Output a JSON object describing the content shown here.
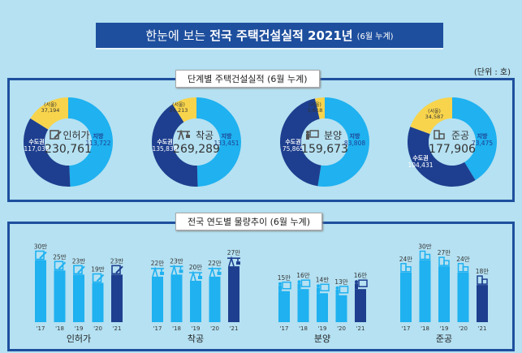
{
  "header": {
    "prefix": "한눈에 보는",
    "title": "전국 주택건설실적 2021년",
    "suffix": "(6월 누계)"
  },
  "unit": "(단위 : 호)",
  "stage_section": {
    "title": "단계별 주택건설실적 (6월 누계)"
  },
  "trend_section": {
    "title": "전국 연도별 물량추이 (6월 누계)"
  },
  "colors": {
    "local": "#1fb1f0",
    "capital": "#1e3f8f",
    "seoul": "#f8d44c",
    "bar": "#1fb1f0",
    "bar_current": "#1e3f8f",
    "banner": "#1e4f9e"
  },
  "chart_data": [
    {
      "type": "pie",
      "donut": true,
      "title": "인허가",
      "total": "230,761",
      "icon": "permit-document-icon",
      "slices": [
        {
          "name": "지방",
          "value": 113722,
          "label": "113,722"
        },
        {
          "name": "수도권",
          "value": 117039,
          "label": "117,039"
        },
        {
          "name": "(서울)",
          "value": 37194,
          "label": "37,194"
        }
      ]
    },
    {
      "type": "pie",
      "donut": true,
      "title": "착공",
      "total": "269,289",
      "icon": "crane-icon",
      "slices": [
        {
          "name": "지방",
          "value": 133451,
          "label": "133,451"
        },
        {
          "name": "수도권",
          "value": 135838,
          "label": "135,838"
        },
        {
          "name": "(서울)",
          "value": 24213,
          "label": "24,213"
        }
      ]
    },
    {
      "type": "pie",
      "donut": true,
      "title": "분양",
      "total": "159,673",
      "icon": "presentation-board-icon",
      "slices": [
        {
          "name": "지방",
          "value": 83808,
          "label": "83,808"
        },
        {
          "name": "수도권",
          "value": 75865,
          "label": "75,865"
        },
        {
          "name": "(서울)",
          "value": 5618,
          "label": "5,618"
        }
      ]
    },
    {
      "type": "pie",
      "donut": true,
      "title": "준공",
      "total": "177,906",
      "icon": "building-icon",
      "slices": [
        {
          "name": "지방",
          "value": 73475,
          "label": "73,475"
        },
        {
          "name": "수도권",
          "value": 104431,
          "label": "104,431"
        },
        {
          "name": "(서울)",
          "value": 34587,
          "label": "34,587"
        }
      ]
    },
    {
      "type": "bar",
      "title": "인허가",
      "categories": [
        "'17",
        "'18",
        "'19",
        "'20",
        "'21"
      ],
      "values": [
        30,
        25,
        23,
        19,
        23
      ],
      "labels": [
        "30만",
        "25만",
        "23만",
        "19만",
        "23만"
      ],
      "icon": "permit-document-icon"
    },
    {
      "type": "bar",
      "title": "착공",
      "categories": [
        "'17",
        "'18",
        "'19",
        "'20",
        "'21"
      ],
      "values": [
        22,
        23,
        20,
        22,
        27
      ],
      "labels": [
        "22만",
        "23만",
        "20만",
        "22만",
        "27만"
      ],
      "icon": "crane-icon"
    },
    {
      "type": "bar",
      "title": "분양",
      "categories": [
        "'17",
        "'18",
        "'19",
        "'20",
        "'21"
      ],
      "values": [
        15,
        16,
        14,
        13,
        16
      ],
      "labels": [
        "15만",
        "16만",
        "14만",
        "13만",
        "16만"
      ],
      "icon": "presentation-board-icon"
    },
    {
      "type": "bar",
      "title": "준공",
      "categories": [
        "'17",
        "'18",
        "'19",
        "'20",
        "'21"
      ],
      "values": [
        24,
        30,
        27,
        24,
        18
      ],
      "labels": [
        "24만",
        "30만",
        "27만",
        "24만",
        "18만"
      ],
      "icon": "building-icon"
    }
  ]
}
